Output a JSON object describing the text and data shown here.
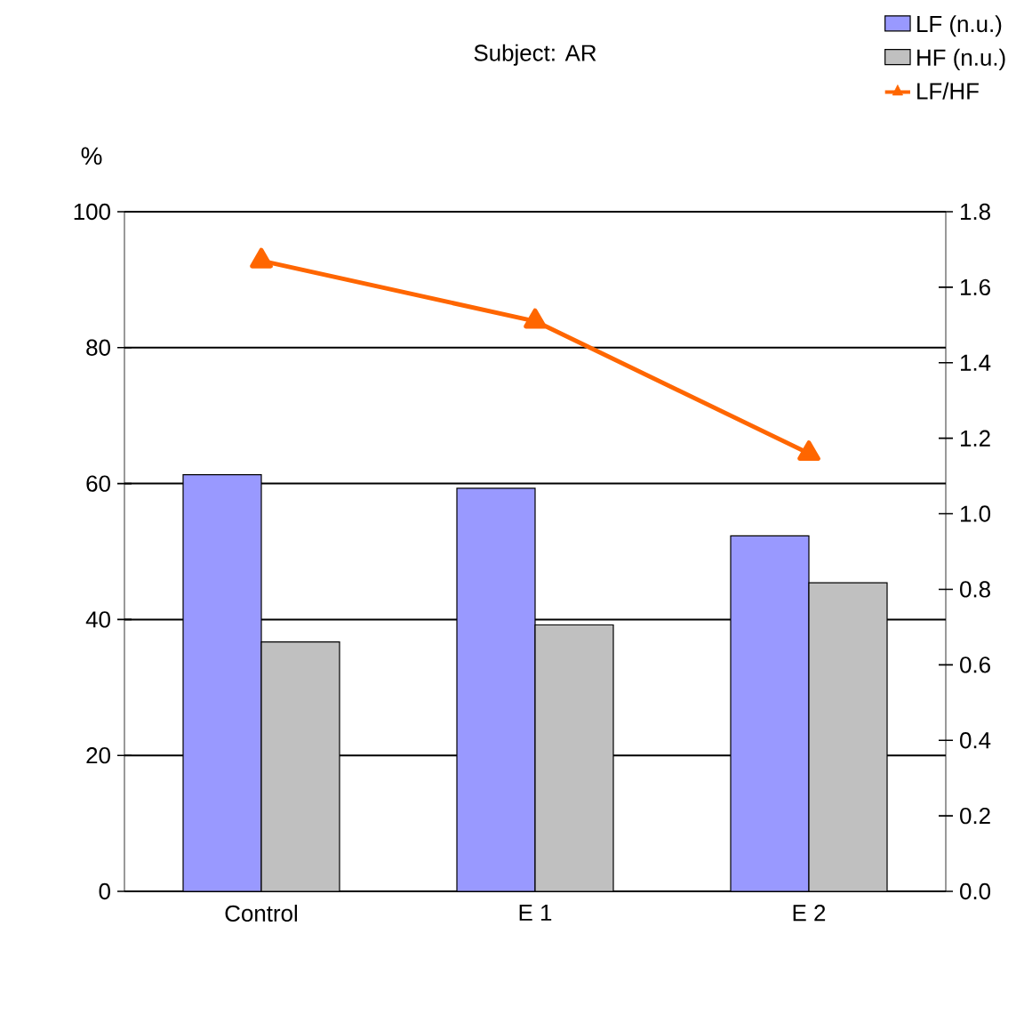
{
  "chart_data": {
    "type": "bar",
    "title": "Subject: AR",
    "ylabel": "%",
    "categories": [
      "Control",
      "E 1",
      "E 2"
    ],
    "series": [
      {
        "name": "LF (n.u.)",
        "color": "#9999ff",
        "values": [
          61.3,
          59.3,
          52.3
        ]
      },
      {
        "name": "HF (n.u.)",
        "color": "#c0c0c0",
        "values": [
          36.7,
          39.2,
          45.4
        ]
      },
      {
        "name": "LF/HF",
        "type": "line",
        "axis": "y2",
        "color": "#ff6600",
        "marker": "triangle",
        "values": [
          1.67,
          1.51,
          1.16
        ]
      }
    ],
    "ylim": [
      0,
      100
    ],
    "yticks": [
      0,
      20,
      40,
      60,
      80,
      100
    ],
    "y2lim": [
      0,
      1.8
    ],
    "y2ticks": [
      {
        "value": 0,
        "label": "0.0"
      },
      {
        "value": 0.2,
        "label": "0.2"
      },
      {
        "value": 0.4,
        "label": "0.4"
      },
      {
        "value": 0.6,
        "label": "0.6"
      },
      {
        "value": 0.8,
        "label": "0.8"
      },
      {
        "value": 1.0,
        "label": "1.0"
      },
      {
        "value": 1.2,
        "label": "1.2"
      },
      {
        "value": 1.4,
        "label": "1.4"
      },
      {
        "value": 1.6,
        "label": "1.6"
      },
      {
        "value": 1.8,
        "label": "1.8"
      }
    ],
    "grid": "y",
    "legend": "top right"
  }
}
